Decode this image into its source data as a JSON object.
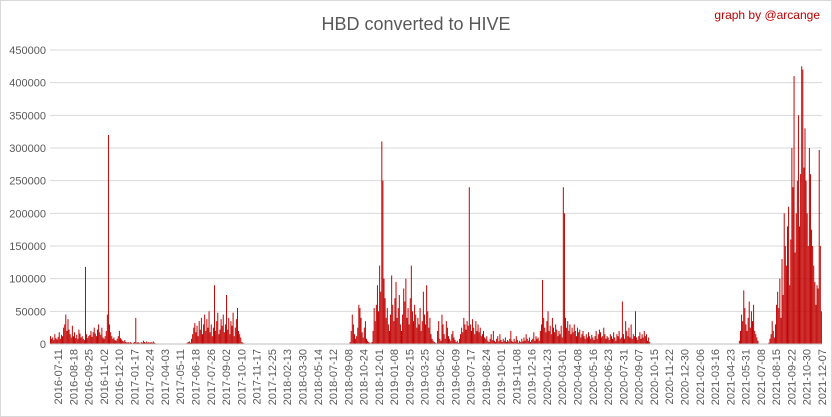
{
  "chart_data": {
    "type": "bar",
    "title": "HBD converted to HIVE",
    "credit": "graph by @arcange",
    "xlabel": "",
    "ylabel": "",
    "ylim": [
      0,
      450000
    ],
    "y_ticks": [
      "0",
      "50000",
      "100000",
      "150000",
      "200000",
      "250000",
      "300000",
      "350000",
      "400000",
      "450000"
    ],
    "grid": "horizontal",
    "legend": "none",
    "bar_color": "#c00000",
    "x_ticks": [
      "2016-07-11",
      "2016-08-18",
      "2016-09-25",
      "2016-11-02",
      "2016-12-10",
      "2017-01-17",
      "2017-02-24",
      "2017-04-03",
      "2017-05-11",
      "2017-06-18",
      "2017-07-26",
      "2017-09-02",
      "2017-10-10",
      "2017-11-17",
      "2017-12-25",
      "2018-02-13",
      "2018-03-30",
      "2018-05-14",
      "2018-07-12",
      "2018-09-08",
      "2018-10-24",
      "2018-12-01",
      "2019-01-08",
      "2019-02-15",
      "2019-03-25",
      "2019-05-02",
      "2019-06-09",
      "2019-07-17",
      "2019-08-24",
      "2019-10-01",
      "2019-11-08",
      "2019-12-16",
      "2020-01-23",
      "2020-03-01",
      "2020-04-08",
      "2020-05-16",
      "2020-06-23",
      "2020-07-31",
      "2020-09-07",
      "2020-10-15",
      "2020-11-22",
      "2020-12-30",
      "2021-02-06",
      "2021-03-16",
      "2021-04-23",
      "2021-05-31",
      "2021-07-08",
      "2021-08-15",
      "2021-09-22",
      "2021-10-30",
      "2021-12-07"
    ],
    "values": [
      12000,
      8000,
      10000,
      6000,
      15000,
      9000,
      7000,
      11000,
      18000,
      8000,
      14000,
      12000,
      25000,
      30000,
      45000,
      20000,
      38000,
      22000,
      15000,
      10000,
      28000,
      12000,
      18000,
      9000,
      14000,
      8000,
      22000,
      16000,
      10000,
      12000,
      8000,
      6000,
      118000,
      15000,
      9000,
      12000,
      14000,
      20000,
      11000,
      18000,
      25000,
      16000,
      12000,
      22000,
      30000,
      18000,
      14000,
      25000,
      10000,
      8000,
      12000,
      20000,
      45000,
      320000,
      30000,
      18000,
      12000,
      8000,
      10000,
      6000,
      5000,
      8000,
      12000,
      20000,
      9000,
      7000,
      5000,
      4000,
      6000,
      3000,
      2000,
      3000,
      2000,
      3000,
      2000,
      1000,
      2000,
      3000,
      40000,
      2000,
      3000,
      2000,
      1000,
      3000,
      2000,
      5000,
      3000,
      2000,
      4000,
      2000,
      3000,
      2000,
      3000,
      2000,
      4000,
      2000,
      1000,
      0,
      0,
      0,
      0,
      0,
      0,
      0,
      0,
      0,
      0,
      0,
      0,
      0,
      0,
      0,
      0,
      0,
      0,
      0,
      0,
      0,
      0,
      0,
      0,
      0,
      0,
      0,
      0,
      2000,
      3000,
      4000,
      2000,
      8000,
      15000,
      25000,
      32000,
      18000,
      28000,
      12000,
      35000,
      22000,
      40000,
      15000,
      30000,
      45000,
      20000,
      38000,
      25000,
      50000,
      18000,
      30000,
      12000,
      25000,
      90000,
      20000,
      35000,
      48000,
      15000,
      22000,
      38000,
      28000,
      45000,
      18000,
      30000,
      75000,
      22000,
      40000,
      15000,
      35000,
      28000,
      48000,
      12000,
      25000,
      38000,
      55000,
      20000,
      15000,
      10000,
      3000,
      2000,
      1000,
      0,
      0,
      0,
      0,
      0,
      0,
      0,
      0,
      0,
      0,
      0,
      0,
      0,
      0,
      0,
      0,
      0,
      0,
      0,
      0,
      0,
      0,
      0,
      0,
      0,
      0,
      0,
      0,
      0,
      0,
      0,
      0,
      0,
      0,
      0,
      0,
      0,
      0,
      0,
      0,
      0,
      0,
      0,
      0,
      0,
      0,
      0,
      0,
      0,
      0,
      0,
      0,
      0,
      0,
      0,
      0,
      0,
      0,
      0,
      0,
      0,
      0,
      0,
      0,
      0,
      0,
      0,
      0,
      0,
      0,
      0,
      0,
      0,
      0,
      0,
      0,
      0,
      0,
      0,
      0,
      0,
      0,
      0,
      0,
      0,
      0,
      0,
      0,
      0,
      0,
      0,
      0,
      0,
      0,
      0,
      0,
      3000,
      20000,
      45000,
      30000,
      15000,
      8000,
      12000,
      25000,
      60000,
      55000,
      40000,
      18000,
      10000,
      25000,
      35000,
      8000,
      5000,
      3000,
      2000,
      1000,
      3000,
      20000,
      55000,
      35000,
      60000,
      90000,
      50000,
      120000,
      80000,
      310000,
      250000,
      100000,
      70000,
      40000,
      55000,
      30000,
      20000,
      45000,
      105000,
      60000,
      35000,
      70000,
      95000,
      40000,
      55000,
      75000,
      30000,
      20000,
      45000,
      85000,
      65000,
      100000,
      40000,
      55000,
      30000,
      70000,
      120000,
      50000,
      35000,
      60000,
      45000,
      25000,
      40000,
      30000,
      55000,
      20000,
      35000,
      80000,
      45000,
      30000,
      90000,
      50000,
      25000,
      40000,
      15000,
      8000,
      5000,
      3000,
      2000,
      1000,
      20000,
      35000,
      8000,
      5000,
      45000,
      30000,
      15000,
      8000,
      35000,
      25000,
      12000,
      8000,
      5000,
      15000,
      20000,
      10000,
      6000,
      3000,
      5000,
      2000,
      8000,
      15000,
      25000,
      18000,
      40000,
      30000,
      22000,
      35000,
      28000,
      240000,
      30000,
      20000,
      38000,
      25000,
      15000,
      35000,
      20000,
      30000,
      18000,
      25000,
      12000,
      15000,
      20000,
      10000,
      8000,
      12000,
      5000,
      3000,
      8000,
      15000,
      6000,
      20000,
      5000,
      3000,
      8000,
      12000,
      4000,
      15000,
      6000,
      3000,
      8000,
      5000,
      10000,
      3000,
      6000,
      4000,
      8000,
      20000,
      5000,
      3000,
      8000,
      4000,
      12000,
      6000,
      2000,
      5000,
      3000,
      8000,
      4000,
      10000,
      5000,
      15000,
      8000,
      5000,
      10000,
      3000,
      6000,
      8000,
      18000,
      5000,
      12000,
      8000,
      10000,
      5000,
      20000,
      30000,
      98000,
      40000,
      25000,
      18000,
      35000,
      50000,
      20000,
      28000,
      15000,
      40000,
      25000,
      18000,
      30000,
      22000,
      12000,
      20000,
      15000,
      28000,
      10000,
      240000,
      200000,
      40000,
      25000,
      35000,
      20000,
      30000,
      15000,
      25000,
      18000,
      30000,
      20000,
      12000,
      25000,
      18000,
      22000,
      10000,
      15000,
      20000,
      12000,
      8000,
      15000,
      10000,
      18000,
      12000,
      8000,
      14000,
      10000,
      6000,
      12000,
      20000,
      8000,
      15000,
      22000,
      18000,
      10000,
      12000,
      25000,
      15000,
      8000,
      12000,
      10000,
      6000,
      15000,
      12000,
      8000,
      18000,
      10000,
      5000,
      15000,
      12000,
      20000,
      8000,
      10000,
      65000,
      15000,
      8000,
      35000,
      20000,
      12000,
      25000,
      10000,
      30000,
      8000,
      15000,
      12000,
      50000,
      10000,
      6000,
      12000,
      18000,
      8000,
      15000,
      10000,
      20000,
      12000,
      15000,
      5000,
      10000,
      3000,
      0,
      0,
      0,
      0,
      0,
      0,
      0,
      0,
      0,
      0,
      0,
      0,
      0,
      0,
      0,
      0,
      0,
      0,
      0,
      0,
      0,
      0,
      0,
      0,
      0,
      0,
      0,
      0,
      0,
      0,
      0,
      0,
      0,
      0,
      0,
      0,
      0,
      0,
      0,
      0,
      0,
      0,
      0,
      0,
      0,
      0,
      0,
      0,
      0,
      0,
      0,
      0,
      0,
      0,
      0,
      0,
      0,
      0,
      0,
      0,
      0,
      0,
      0,
      0,
      0,
      0,
      0,
      0,
      0,
      0,
      0,
      0,
      0,
      0,
      0,
      0,
      0,
      0,
      0,
      0,
      0,
      5000,
      20000,
      45000,
      35000,
      82000,
      55000,
      30000,
      20000,
      40000,
      65000,
      25000,
      50000,
      35000,
      60000,
      20000,
      15000,
      10000,
      5000,
      0,
      0,
      0,
      0,
      0,
      0,
      0,
      0,
      0,
      2000,
      8000,
      15000,
      35000,
      20000,
      10000,
      30000,
      60000,
      80000,
      55000,
      100000,
      40000,
      130000,
      75000,
      200000,
      150000,
      120000,
      180000,
      210000,
      90000,
      160000,
      300000,
      240000,
      410000,
      140000,
      200000,
      250000,
      350000,
      180000,
      260000,
      425000,
      420000,
      270000,
      330000,
      250000,
      200000,
      150000,
      300000,
      260000,
      175000,
      150000,
      120000,
      95000,
      60000,
      90000,
      85000,
      297000,
      150000,
      50000
    ]
  }
}
